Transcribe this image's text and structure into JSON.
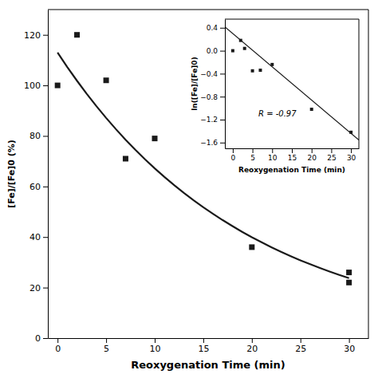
{
  "chart_data": [
    {
      "type": "scatter",
      "xlabel": "Reoxygenation Time (min)",
      "ylabel": "[Fe]/[Fe]0 (%)",
      "xlim": [
        -1,
        32
      ],
      "ylim": [
        0,
        130
      ],
      "xticks": [
        0,
        5,
        10,
        15,
        20,
        25,
        30
      ],
      "yticks": [
        0,
        20,
        40,
        60,
        80,
        100,
        120
      ],
      "grid": false,
      "series": [
        {
          "type": "scatter",
          "marker": "square",
          "color": "#1a1a1a",
          "x": [
            0,
            2,
            5,
            7,
            10,
            20,
            30,
            30
          ],
          "values": [
            100,
            120,
            102,
            71,
            79,
            36,
            22,
            26
          ]
        },
        {
          "type": "line",
          "line_style": "solid",
          "color": "#1a1a1a",
          "x": [
            0,
            1,
            2,
            3,
            4,
            5,
            6,
            7,
            8,
            9,
            10,
            11,
            12,
            13,
            14,
            15,
            16,
            17,
            18,
            19,
            20,
            21,
            22,
            23,
            24,
            25,
            26,
            27,
            28,
            29,
            30
          ],
          "values": [
            113,
            107.27,
            101.84,
            96.68,
            91.78,
            87.13,
            82.71,
            78.52,
            74.54,
            70.77,
            67.18,
            63.78,
            60.55,
            57.48,
            54.56,
            51.8,
            49.18,
            46.68,
            44.32,
            42.07,
            39.94,
            37.92,
            36.0,
            34.17,
            32.44,
            30.8,
            29.24,
            27.75,
            26.35,
            25.01,
            23.75
          ]
        }
      ]
    },
    {
      "type": "scatter",
      "xlabel": "Reoxygenation Time (min)",
      "ylabel": "ln([Fe]/[Fe]0)",
      "annotation": "R = -0.97",
      "xlim": [
        -2,
        32
      ],
      "ylim": [
        -1.7,
        0.55
      ],
      "xticks": [
        0,
        5,
        10,
        15,
        20,
        25,
        30
      ],
      "yticks": [
        0.4,
        {
          "value": 0,
          "label": "0.0"
        },
        {
          "value": -0.4,
          "label": "−0.4"
        },
        {
          "value": -0.8,
          "label": "−0.8"
        },
        {
          "value": -1.2,
          "label": "−1.2"
        },
        {
          "value": -1.6,
          "label": "−1.6"
        }
      ],
      "grid": false,
      "series": [
        {
          "type": "scatter",
          "marker": "square",
          "color": "#1a1a1a",
          "x": [
            0,
            2,
            3,
            5,
            7,
            10,
            20,
            30
          ],
          "values": [
            0.0,
            0.18,
            0.04,
            -0.35,
            -0.34,
            -0.24,
            -1.02,
            -1.42
          ]
        },
        {
          "type": "line",
          "line_style": "solid",
          "color": "#1a1a1a",
          "x": [
            -2,
            32
          ],
          "values": [
            0.416,
            -1.556
          ]
        }
      ]
    }
  ]
}
